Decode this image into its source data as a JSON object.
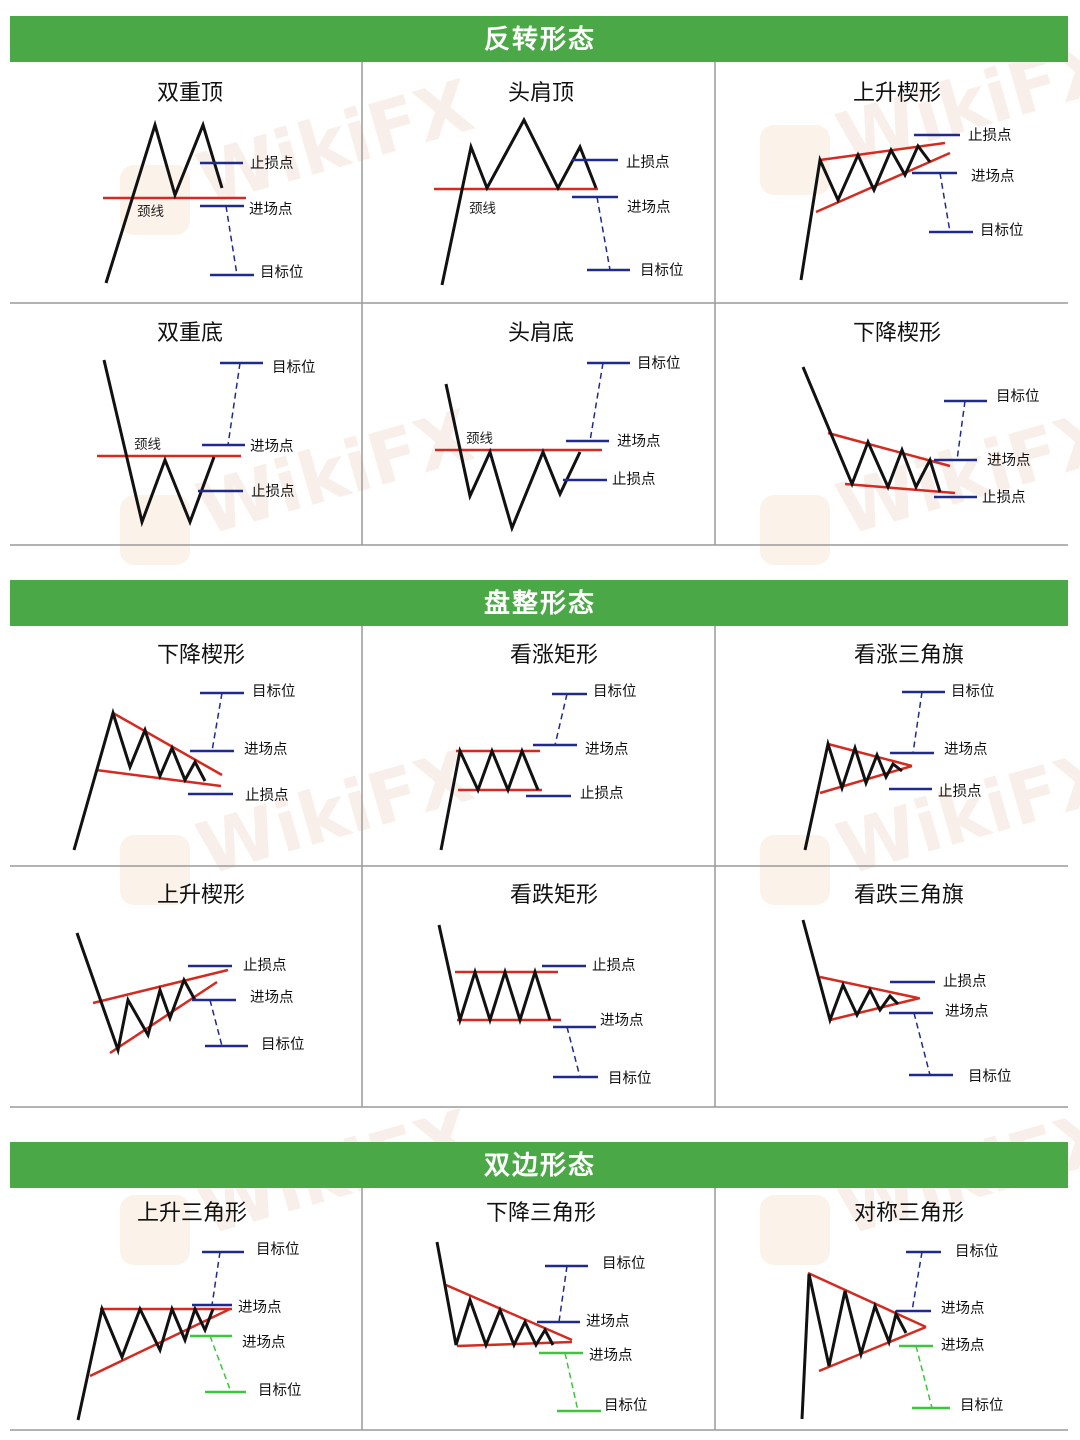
{
  "watermark": "WikiFX",
  "colors": {
    "header": "#4aa846",
    "price": "#111111",
    "trendline": "#d42a20",
    "blue_level": "#1f2a8c",
    "green_level": "#3ec43e",
    "grid": "#9a9a9a"
  },
  "sections": [
    {
      "title": "反转形态"
    },
    {
      "title": "盘整形态"
    },
    {
      "title": "双边形态"
    }
  ],
  "patterns": [
    {
      "title": "双重顶",
      "neckline": "颈线",
      "labels": [
        "止损点",
        "进场点",
        "目标位"
      ]
    },
    {
      "title": "头肩顶",
      "neckline": "颈线",
      "labels": [
        "止损点",
        "进场点",
        "目标位"
      ]
    },
    {
      "title": "上升楔形",
      "labels": [
        "止损点",
        "进场点",
        "目标位"
      ]
    },
    {
      "title": "双重底",
      "neckline": "颈线",
      "labels": [
        "目标位",
        "进场点",
        "止损点"
      ]
    },
    {
      "title": "头肩底",
      "neckline": "颈线",
      "labels": [
        "目标位",
        "进场点",
        "止损点"
      ]
    },
    {
      "title": "下降楔形",
      "labels": [
        "目标位",
        "进场点",
        "止损点"
      ]
    },
    {
      "title": "下降楔形",
      "labels": [
        "目标位",
        "进场点",
        "止损点"
      ]
    },
    {
      "title": "看涨矩形",
      "labels": [
        "目标位",
        "进场点",
        "止损点"
      ]
    },
    {
      "title": "看涨三角旗",
      "labels": [
        "目标位",
        "进场点",
        "止损点"
      ]
    },
    {
      "title": "上升楔形",
      "labels": [
        "止损点",
        "进场点",
        "目标位"
      ]
    },
    {
      "title": "看跌矩形",
      "labels": [
        "止损点",
        "进场点",
        "目标位"
      ]
    },
    {
      "title": "看跌三角旗",
      "labels": [
        "止损点",
        "进场点",
        "目标位"
      ]
    },
    {
      "title": "上升三角形",
      "labels": [
        "目标位",
        "进场点",
        "进场点",
        "目标位"
      ]
    },
    {
      "title": "下降三角形",
      "labels": [
        "目标位",
        "进场点",
        "进场点",
        "目标位"
      ]
    },
    {
      "title": "对称三角形",
      "labels": [
        "目标位",
        "进场点",
        "进场点",
        "目标位"
      ]
    }
  ]
}
